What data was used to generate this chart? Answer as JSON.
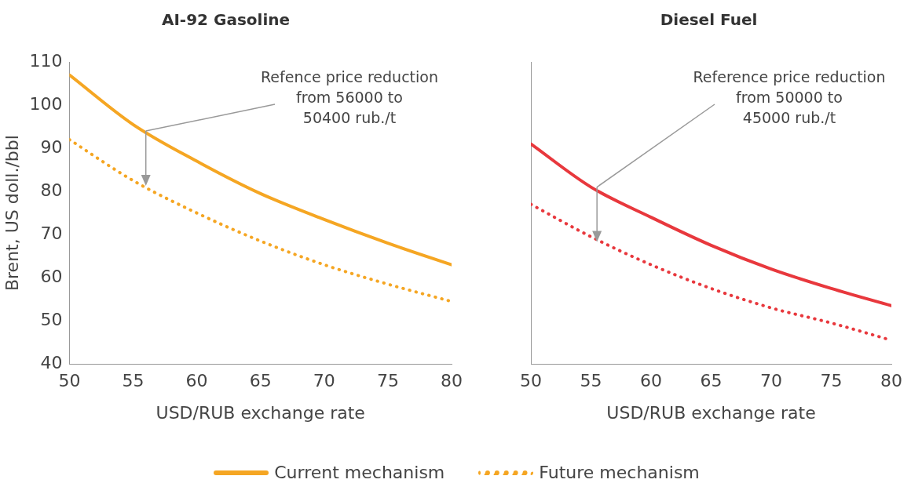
{
  "chart_data": [
    {
      "type": "line",
      "title": "AI-92 Gasoline",
      "xlabel": "USD/RUB exchange rate",
      "ylabel": "Brent, US doll./bbl",
      "x": [
        50,
        55,
        60,
        65,
        70,
        75,
        80
      ],
      "xlim": [
        50,
        80
      ],
      "xticks": [
        50,
        55,
        60,
        65,
        70,
        75,
        80
      ],
      "ylim": [
        40,
        110
      ],
      "yticks": [
        40,
        50,
        60,
        70,
        80,
        90,
        100,
        110
      ],
      "grid": false,
      "legend": "bottom",
      "marker": "none",
      "series": [
        {
          "name": "Current mechanism",
          "color": "#f5a623",
          "line_style": "solid",
          "values": [
            107,
            95.5,
            87,
            79.5,
            73.5,
            68,
            63
          ]
        },
        {
          "name": "Future mechanism",
          "color": "#f5a623",
          "line_style": "dotted",
          "values": [
            92,
            82.5,
            75,
            68.5,
            63,
            58.5,
            54.5
          ]
        }
      ],
      "annotations": [
        {
          "text": "Refence price reduction\nfrom 56000 to\n50400 rub./t",
          "x": 56,
          "y": 94
        }
      ]
    },
    {
      "type": "line",
      "title": "Diesel Fuel",
      "xlabel": "USD/RUB exchange rate",
      "x": [
        50,
        55,
        60,
        65,
        70,
        75,
        80
      ],
      "xlim": [
        50,
        80
      ],
      "xticks": [
        50,
        55,
        60,
        65,
        70,
        75,
        80
      ],
      "ylim": [
        40,
        110
      ],
      "yticks": [
        40,
        50,
        60,
        70,
        80,
        90,
        100,
        110
      ],
      "tick_labels": "x",
      "grid": false,
      "marker": "none",
      "series": [
        {
          "color": "#e8383d",
          "line_style": "solid",
          "values": [
            91,
            81,
            74,
            67.5,
            62,
            57.5,
            53.5
          ]
        },
        {
          "color": "#e8383d",
          "line_style": "dotted",
          "values": [
            77,
            69.5,
            63,
            57.5,
            53,
            49.5,
            45.5
          ]
        }
      ],
      "annotations": [
        {
          "text": "Reference price reduction\nfrom 50000 to\n45000 rub./t",
          "x": 55.5,
          "y": 81
        }
      ]
    }
  ]
}
